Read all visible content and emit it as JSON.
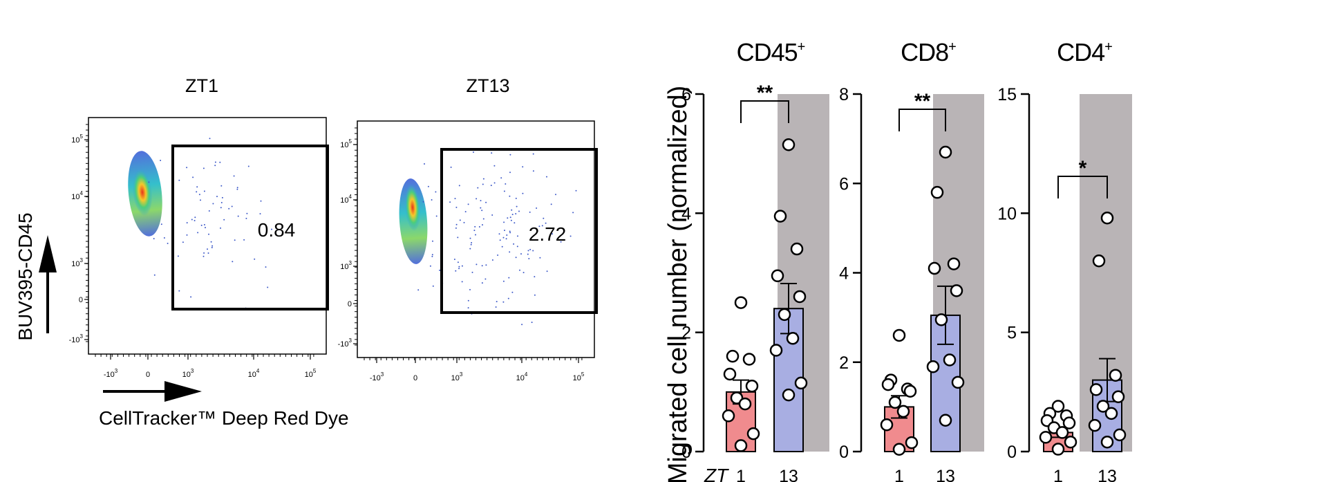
{
  "flow": {
    "panels": [
      {
        "title": "ZT1",
        "gate_value": "0.84"
      },
      {
        "title": "ZT13",
        "gate_value": "2.72"
      }
    ],
    "y_axis_label": "BUV395-CD45",
    "x_axis_label": "CellTracker™ Deep Red Dye",
    "y_ticks": [
      {
        "base": "10",
        "exp": "5"
      },
      {
        "base": "10",
        "exp": "4"
      },
      {
        "base": "10",
        "exp": "3"
      },
      {
        "base": "0",
        "exp": ""
      },
      {
        "base": "-10",
        "exp": "3"
      }
    ],
    "x_ticks": [
      {
        "base": "-10",
        "exp": "3"
      },
      {
        "base": "0",
        "exp": ""
      },
      {
        "base": "10",
        "exp": "3"
      },
      {
        "base": "10",
        "exp": "4"
      },
      {
        "base": "10",
        "exp": "5"
      }
    ]
  },
  "bars": {
    "y_label": "Migrated cell number (normalized)",
    "x_prefix": "ZT",
    "x_categories": [
      "1",
      "13"
    ],
    "colors": {
      "zt1": "#f08b8e",
      "zt13": "#a8aee2",
      "night_shade": "#b9b4b6"
    }
  },
  "chart_data": [
    {
      "type": "scatter",
      "title": "ZT1",
      "gate_percent": 0.84,
      "xlabel": "CellTracker™ Deep Red Dye",
      "ylabel": "BUV395-CD45"
    },
    {
      "type": "scatter",
      "title": "ZT13",
      "gate_percent": 2.72,
      "xlabel": "CellTracker™ Deep Red Dye",
      "ylabel": "BUV395-CD45"
    },
    {
      "type": "bar",
      "title": "CD45",
      "title_sup": "+",
      "categories": [
        "1",
        "13"
      ],
      "means": [
        1.0,
        2.4
      ],
      "sem": [
        0.2,
        0.42
      ],
      "points": [
        [
          2.5,
          1.6,
          1.55,
          1.3,
          1.1,
          0.9,
          0.8,
          0.6,
          0.3,
          0.1
        ],
        [
          5.15,
          3.95,
          3.4,
          2.95,
          2.6,
          2.3,
          1.9,
          1.7,
          1.15,
          0.95
        ]
      ],
      "ylim": [
        0,
        6
      ],
      "yticks": [
        0,
        2,
        4,
        6
      ],
      "significance": "**"
    },
    {
      "type": "bar",
      "title": "CD8",
      "title_sup": "+",
      "categories": [
        "1",
        "13"
      ],
      "means": [
        1.0,
        3.05
      ],
      "sem": [
        0.25,
        0.65
      ],
      "points": [
        [
          2.6,
          1.6,
          1.4,
          1.5,
          1.35,
          1.1,
          0.9,
          0.6,
          0.2,
          0.05
        ],
        [
          6.7,
          5.8,
          4.2,
          4.1,
          3.6,
          2.95,
          2.05,
          1.9,
          1.55,
          0.7
        ]
      ],
      "ylim": [
        0,
        8
      ],
      "yticks": [
        0,
        2,
        4,
        6,
        8
      ],
      "significance": "**"
    },
    {
      "type": "bar",
      "title": "CD4",
      "title_sup": "+",
      "categories": [
        "1",
        "13"
      ],
      "means": [
        0.8,
        3.0
      ],
      "sem": [
        0.2,
        0.9
      ],
      "points": [
        [
          1.9,
          1.6,
          1.5,
          1.3,
          1.2,
          1.0,
          0.8,
          0.6,
          0.4,
          0.1
        ],
        [
          9.8,
          8.0,
          3.2,
          2.6,
          2.3,
          1.9,
          1.6,
          1.1,
          0.7,
          0.4
        ]
      ],
      "ylim": [
        0,
        15
      ],
      "yticks": [
        0,
        5,
        10,
        15
      ],
      "significance": "*"
    }
  ]
}
